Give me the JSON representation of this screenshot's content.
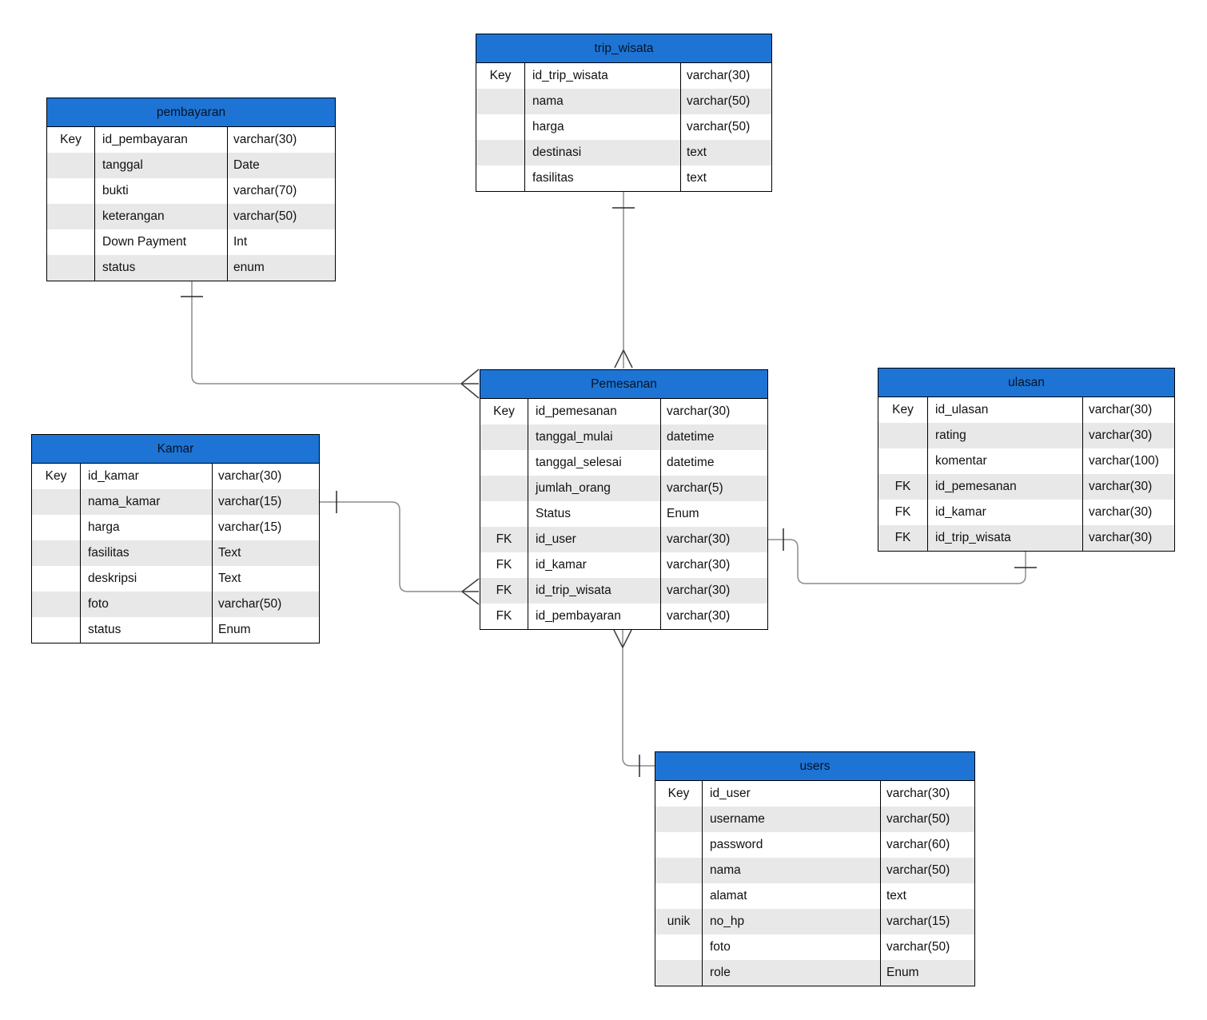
{
  "diagram": {
    "kind": "entity-relationship-diagram",
    "colors": {
      "table_header_fill": "#1e74d4",
      "table_header_text": "#061427",
      "row_alt_fill": "#e8e8e8",
      "table_border": "#000000",
      "connector_line": "#8c8c8c",
      "cardinality_marker": "#3d3d3d"
    },
    "tables": [
      {
        "title": "pembayaran",
        "rows": [
          {
            "key": "Key",
            "name": "id_pembayaran",
            "type": "varchar(30)"
          },
          {
            "key": "",
            "name": "tanggal",
            "type": "Date"
          },
          {
            "key": "",
            "name": "bukti",
            "type": "varchar(70)"
          },
          {
            "key": "",
            "name": "keterangan",
            "type": "varchar(50)"
          },
          {
            "key": "",
            "name": "Down Payment",
            "type": "Int"
          },
          {
            "key": "",
            "name": "status",
            "type": "enum"
          }
        ]
      },
      {
        "title": "trip_wisata",
        "rows": [
          {
            "key": "Key",
            "name": "id_trip_wisata",
            "type": "varchar(30)"
          },
          {
            "key": "",
            "name": "nama",
            "type": "varchar(50)"
          },
          {
            "key": "",
            "name": "harga",
            "type": "varchar(50)"
          },
          {
            "key": "",
            "name": "destinasi",
            "type": "text"
          },
          {
            "key": "",
            "name": "fasilitas",
            "type": "text"
          }
        ]
      },
      {
        "title": "Pemesanan",
        "rows": [
          {
            "key": "Key",
            "name": "id_pemesanan",
            "type": "varchar(30)"
          },
          {
            "key": "",
            "name": "tanggal_mulai",
            "type": "datetime"
          },
          {
            "key": "",
            "name": "tanggal_selesai",
            "type": "datetime"
          },
          {
            "key": "",
            "name": "jumlah_orang",
            "type": "varchar(5)"
          },
          {
            "key": "",
            "name": "Status",
            "type": "Enum"
          },
          {
            "key": "FK",
            "name": "id_user",
            "type": "varchar(30)"
          },
          {
            "key": "FK",
            "name": "id_kamar",
            "type": "varchar(30)"
          },
          {
            "key": "FK",
            "name": "id_trip_wisata",
            "type": "varchar(30)"
          },
          {
            "key": "FK",
            "name": "id_pembayaran",
            "type": "varchar(30)"
          }
        ]
      },
      {
        "title": "ulasan",
        "rows": [
          {
            "key": "Key",
            "name": "id_ulasan",
            "type": "varchar(30)"
          },
          {
            "key": "",
            "name": "rating",
            "type": "varchar(30)"
          },
          {
            "key": "",
            "name": "komentar",
            "type": "varchar(100)"
          },
          {
            "key": "FK",
            "name": "id_pemesanan",
            "type": "varchar(30)"
          },
          {
            "key": "FK",
            "name": "id_kamar",
            "type": "varchar(30)"
          },
          {
            "key": "FK",
            "name": "id_trip_wisata",
            "type": "varchar(30)"
          }
        ]
      },
      {
        "title": "Kamar",
        "rows": [
          {
            "key": "Key",
            "name": "id_kamar",
            "type": "varchar(30)"
          },
          {
            "key": "",
            "name": "nama_kamar",
            "type": "varchar(15)"
          },
          {
            "key": "",
            "name": "harga",
            "type": "varchar(15)"
          },
          {
            "key": "",
            "name": "fasilitas",
            "type": "Text"
          },
          {
            "key": "",
            "name": "deskripsi",
            "type": "Text"
          },
          {
            "key": "",
            "name": "foto",
            "type": "varchar(50)"
          },
          {
            "key": "",
            "name": "status",
            "type": "Enum"
          }
        ]
      },
      {
        "title": "users",
        "rows": [
          {
            "key": "Key",
            "name": "id_user",
            "type": "varchar(30)"
          },
          {
            "key": "",
            "name": "username",
            "type": "varchar(50)"
          },
          {
            "key": "",
            "name": "password",
            "type": "varchar(60)"
          },
          {
            "key": "",
            "name": "nama",
            "type": "varchar(50)"
          },
          {
            "key": "",
            "name": "alamat",
            "type": "text"
          },
          {
            "key": "unik",
            "name": "no_hp",
            "type": "varchar(15)"
          },
          {
            "key": "",
            "name": "foto",
            "type": "varchar(50)"
          },
          {
            "key": "",
            "name": "role",
            "type": "Enum"
          }
        ]
      }
    ],
    "relationships": [
      {
        "from": "trip_wisata",
        "to": "Pemesanan",
        "from_cardinality": "one",
        "to_cardinality": "many"
      },
      {
        "from": "pembayaran",
        "to": "Pemesanan",
        "from_cardinality": "one",
        "to_cardinality": "many"
      },
      {
        "from": "Kamar",
        "to": "Pemesanan",
        "from_cardinality": "one",
        "to_cardinality": "many"
      },
      {
        "from": "Pemesanan",
        "to": "ulasan",
        "from_cardinality": "one",
        "to_cardinality": "one"
      },
      {
        "from": "users",
        "to": "Pemesanan",
        "from_cardinality": "one",
        "to_cardinality": "many"
      }
    ]
  }
}
